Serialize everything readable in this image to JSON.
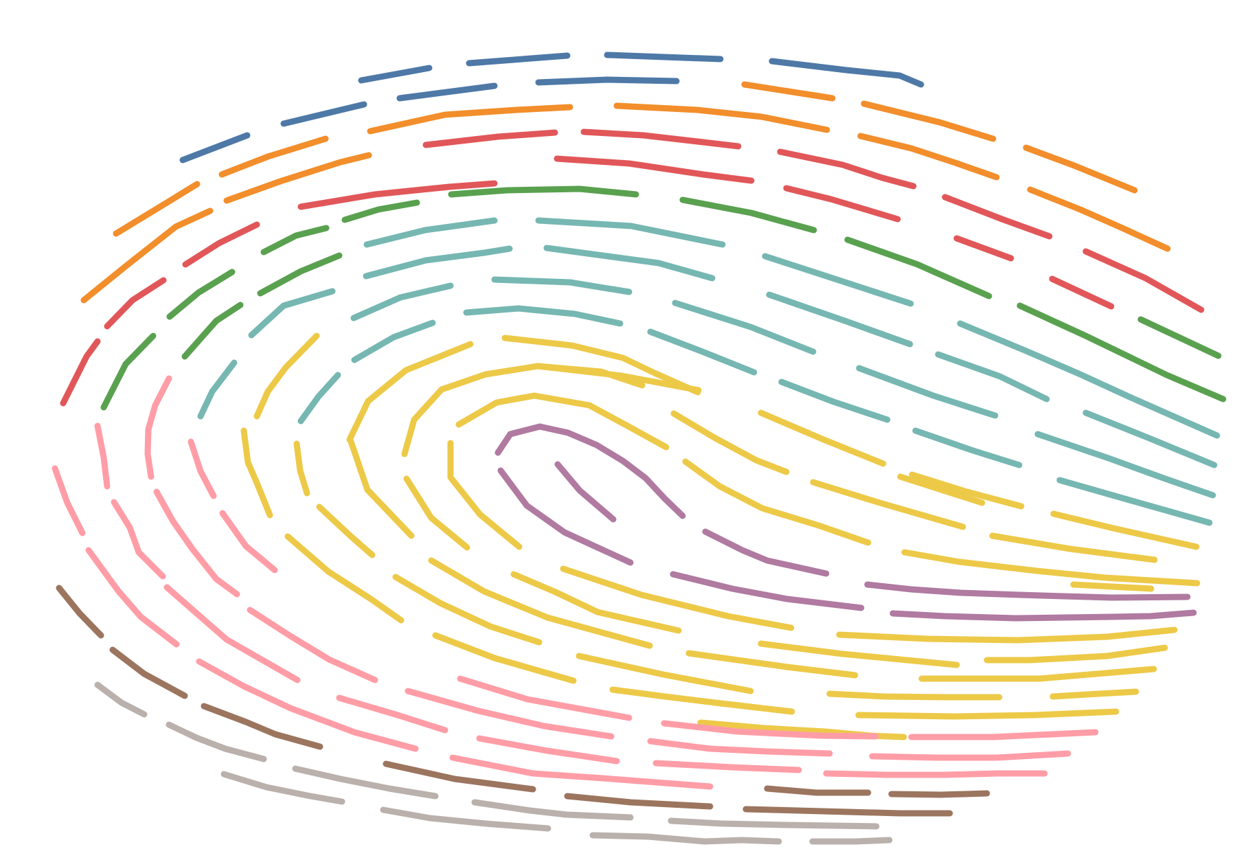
{
  "palette": {
    "blue": "#4e79a7",
    "orange": "#f28e2b",
    "red": "#e15759",
    "green": "#59a14f",
    "teal": "#76b7b2",
    "yellow": "#edc948",
    "purple": "#b07aa1",
    "pink": "#ff9da7",
    "brown": "#9c755f",
    "gray": "#bab0ac"
  },
  "figure": {
    "subject": "fingerprint-ridges",
    "ridge_color_order": [
      "blue",
      "orange",
      "red",
      "green",
      "teal",
      "yellow",
      "purple",
      "pink",
      "brown",
      "gray"
    ]
  }
}
